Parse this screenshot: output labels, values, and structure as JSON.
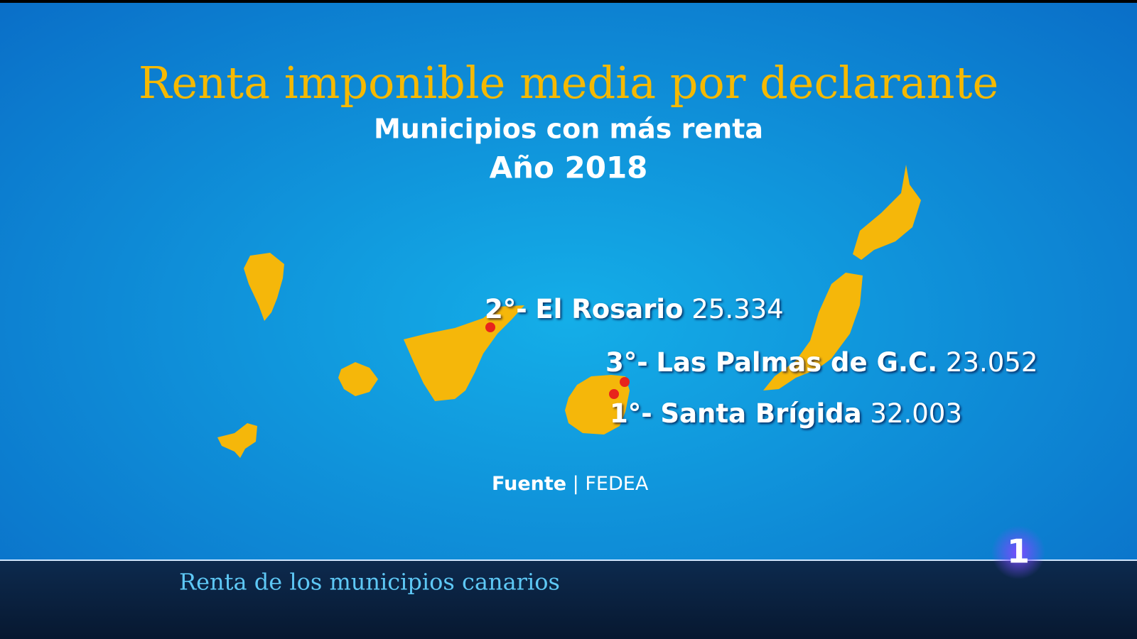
{
  "header": {
    "title": "Renta imponible media por declarante",
    "subtitle": "Municipios con más renta",
    "year": "Año 2018"
  },
  "labels": [
    {
      "rank": "2°-",
      "name": "El Rosario",
      "value": "25.334"
    },
    {
      "rank": "3°-",
      "name": "Las Palmas de G.C.",
      "value": "23.052"
    },
    {
      "rank": "1°-",
      "name": "Santa Brígida",
      "value": "32.003"
    }
  ],
  "source": {
    "label": "Fuente",
    "separator": "|",
    "name": "FEDEA"
  },
  "ticker": {
    "text": "Renta de los municipios canarios"
  },
  "logo": {
    "text": "1"
  }
}
